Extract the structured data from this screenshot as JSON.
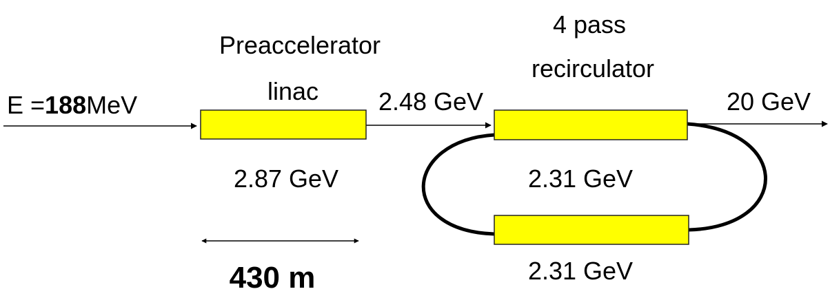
{
  "input": {
    "prefix": "E =",
    "value": "188",
    "unit": "MeV"
  },
  "preaccelerator": {
    "title": [
      "Preaccelerator",
      "linac"
    ],
    "energy": "2.87 GeV",
    "length": "430 m"
  },
  "injection_energy": "2.48 GeV",
  "recirculator": {
    "title": [
      "4 pass",
      "recirculator"
    ],
    "linac_energies": [
      "2.31 GeV",
      "2.31 GeV"
    ]
  },
  "output_energy": "20 GeV"
}
